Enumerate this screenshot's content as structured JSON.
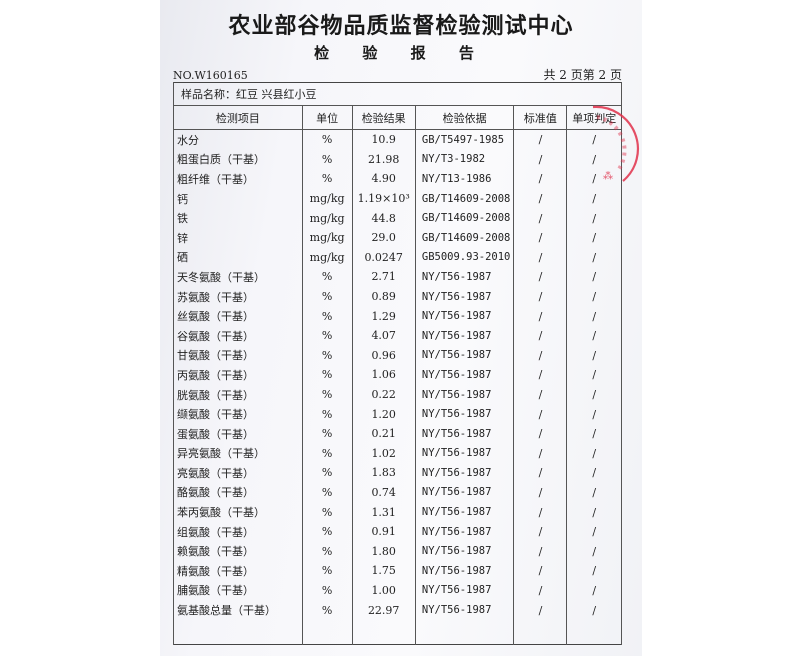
{
  "header": {
    "title": "农业部谷物品质监督检验测试中心",
    "subtitle": "检 验 报 告",
    "report_no": "NO.W160165",
    "pages": "共 2 页第 2 页"
  },
  "sample": {
    "label": "样品名称：",
    "value": "红豆   兴县红小豆"
  },
  "columns": [
    "检测项目",
    "单位",
    "检验结果",
    "检验依据",
    "标准值",
    "单项判定"
  ],
  "rows": [
    [
      "水分",
      "%",
      "10.9",
      "GB/T5497-1985",
      "/",
      "/"
    ],
    [
      "粗蛋白质（干基）",
      "%",
      "21.98",
      "NY/T3-1982",
      "/",
      "/"
    ],
    [
      "粗纤维（干基）",
      "%",
      "4.90",
      "NY/T13-1986",
      "/",
      "/"
    ],
    [
      "钙",
      "mg/kg",
      "1.19×10³",
      "GB/T14609-2008",
      "/",
      "/"
    ],
    [
      "铁",
      "mg/kg",
      "44.8",
      "GB/T14609-2008",
      "/",
      "/"
    ],
    [
      "锌",
      "mg/kg",
      "29.0",
      "GB/T14609-2008",
      "/",
      "/"
    ],
    [
      "硒",
      "mg/kg",
      "0.0247",
      "GB5009.93-2010",
      "/",
      "/"
    ],
    [
      "天冬氨酸（干基）",
      "%",
      "2.71",
      "NY/T56-1987",
      "/",
      "/"
    ],
    [
      "苏氨酸（干基）",
      "%",
      "0.89",
      "NY/T56-1987",
      "/",
      "/"
    ],
    [
      "丝氨酸（干基）",
      "%",
      "1.29",
      "NY/T56-1987",
      "/",
      "/"
    ],
    [
      "谷氨酸（干基）",
      "%",
      "4.07",
      "NY/T56-1987",
      "/",
      "/"
    ],
    [
      "甘氨酸（干基）",
      "%",
      "0.96",
      "NY/T56-1987",
      "/",
      "/"
    ],
    [
      "丙氨酸（干基）",
      "%",
      "1.06",
      "NY/T56-1987",
      "/",
      "/"
    ],
    [
      "胱氨酸（干基）",
      "%",
      "0.22",
      "NY/T56-1987",
      "/",
      "/"
    ],
    [
      "缬氨酸（干基）",
      "%",
      "1.20",
      "NY/T56-1987",
      "/",
      "/"
    ],
    [
      "蛋氨酸（干基）",
      "%",
      "0.21",
      "NY/T56-1987",
      "/",
      "/"
    ],
    [
      "异亮氨酸（干基）",
      "%",
      "1.02",
      "NY/T56-1987",
      "/",
      "/"
    ],
    [
      "亮氨酸（干基）",
      "%",
      "1.83",
      "NY/T56-1987",
      "/",
      "/"
    ],
    [
      "酪氨酸（干基）",
      "%",
      "0.74",
      "NY/T56-1987",
      "/",
      "/"
    ],
    [
      "苯丙氨酸（干基）",
      "%",
      "1.31",
      "NY/T56-1987",
      "/",
      "/"
    ],
    [
      "组氨酸（干基）",
      "%",
      "0.91",
      "NY/T56-1987",
      "/",
      "/"
    ],
    [
      "赖氨酸（干基）",
      "%",
      "1.80",
      "NY/T56-1987",
      "/",
      "/"
    ],
    [
      "精氨酸（干基）",
      "%",
      "1.75",
      "NY/T56-1987",
      "/",
      "/"
    ],
    [
      "脯氨酸（干基）",
      "%",
      "1.00",
      "NY/T56-1987",
      "/",
      "/"
    ],
    [
      "氨基酸总量（干基）",
      "%",
      "22.97",
      "NY/T56-1987",
      "/",
      "/"
    ]
  ],
  "colors": {
    "stamp": "#e0304a",
    "ink": "#222222"
  }
}
